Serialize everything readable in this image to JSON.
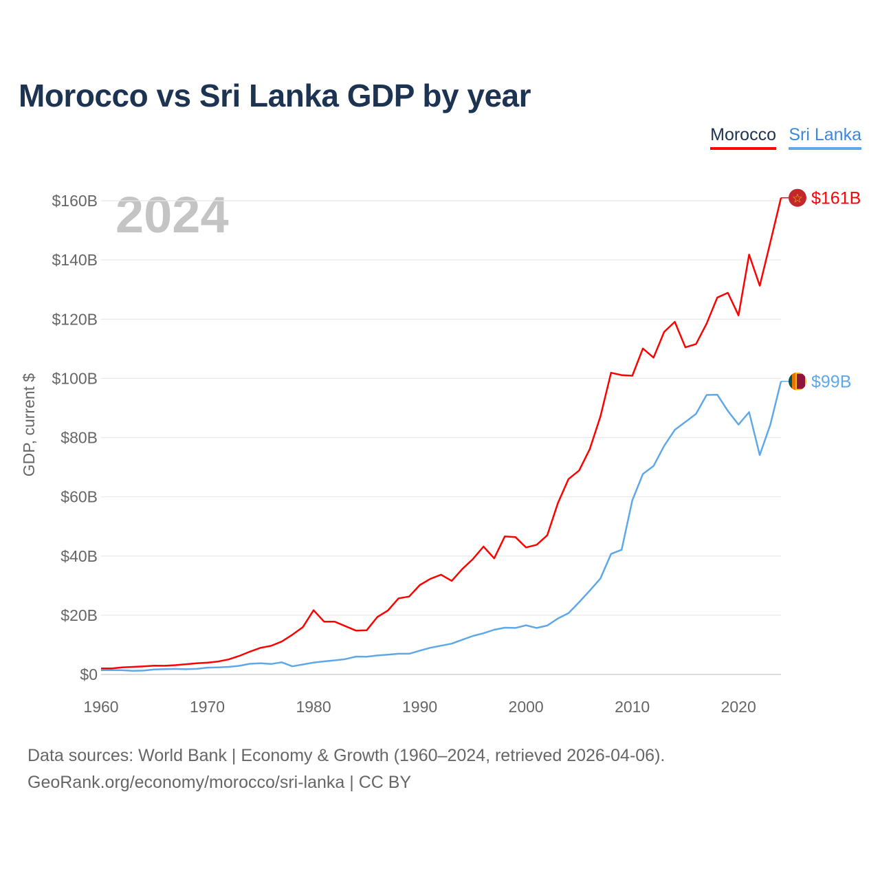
{
  "title": "Morocco vs Sri Lanka GDP by year",
  "legend": [
    "Morocco",
    "Sri Lanka"
  ],
  "year_watermark": "2024",
  "footer": {
    "line1": "Data sources: World Bank | Economy & Growth (1960–2024, retrieved 2026-04-06).",
    "line2": "GeoRank.org/economy/morocco/sri-lanka | CC BY"
  },
  "chart_data": {
    "type": "line",
    "title": "Morocco vs Sri Lanka GDP by year",
    "xlabel": "",
    "ylabel": "GDP, current $",
    "xlim": [
      1960,
      2024
    ],
    "ylim": [
      0,
      160
    ],
    "x_ticks": [
      1960,
      1970,
      1980,
      1990,
      2000,
      2010,
      2020
    ],
    "x_tick_labels": [
      "1960",
      "1970",
      "1980",
      "1990",
      "2000",
      "2010",
      "2020"
    ],
    "y_ticks": [
      0,
      20,
      40,
      60,
      80,
      100,
      120,
      140,
      160
    ],
    "y_tick_labels": [
      "$0",
      "$20B",
      "$40B",
      "$60B",
      "$80B",
      "$100B",
      "$120B",
      "$140B",
      "$160B"
    ],
    "grid": true,
    "legend_position": "top-right",
    "series": [
      {
        "name": "Morocco",
        "color": "#ff0000",
        "end_label": "$161B",
        "flag": "morocco-flag",
        "values": [
          2.04,
          2.04,
          2.37,
          2.56,
          2.73,
          2.95,
          2.93,
          3.14,
          3.45,
          3.79,
          3.96,
          4.36,
          5.07,
          6.24,
          7.68,
          8.98,
          9.65,
          11.1,
          13.4,
          16.0,
          21.7,
          17.8,
          17.8,
          16.3,
          14.8,
          14.9,
          19.4,
          21.6,
          25.7,
          26.3,
          30.2,
          32.3,
          33.7,
          31.6,
          35.6,
          39.0,
          43.2,
          39.2,
          46.6,
          46.4,
          42.9,
          43.8,
          47.0,
          57.9,
          66.0,
          68.9,
          76.1,
          87.1,
          101.9,
          101.1,
          100.9,
          110.1,
          107.0,
          115.7,
          119.1,
          110.5,
          111.6,
          118.5,
          127.3,
          128.9,
          121.3,
          141.8,
          131.3,
          146.0,
          161.0
        ]
      },
      {
        "name": "Sri Lanka",
        "color": "#5ea8ea",
        "end_label": "$99B",
        "flag": "sri-lanka-flag",
        "values": [
          1.41,
          1.45,
          1.42,
          1.24,
          1.3,
          1.7,
          1.78,
          1.86,
          1.76,
          1.88,
          2.3,
          2.39,
          2.56,
          2.91,
          3.6,
          3.78,
          3.53,
          4.1,
          2.73,
          3.36,
          4.02,
          4.42,
          4.77,
          5.17,
          6.04,
          5.98,
          6.4,
          6.68,
          6.98,
          6.99,
          8.03,
          9.0,
          9.7,
          10.4,
          11.7,
          13.0,
          13.9,
          15.1,
          15.8,
          15.7,
          16.6,
          15.7,
          16.5,
          18.9,
          20.7,
          24.4,
          28.3,
          32.4,
          40.7,
          42.1,
          58.8,
          67.7,
          70.4,
          77.2,
          82.6,
          85.3,
          88.0,
          94.4,
          94.5,
          89.0,
          84.4,
          88.6,
          74.1,
          84.4,
          99.0
        ]
      }
    ]
  }
}
